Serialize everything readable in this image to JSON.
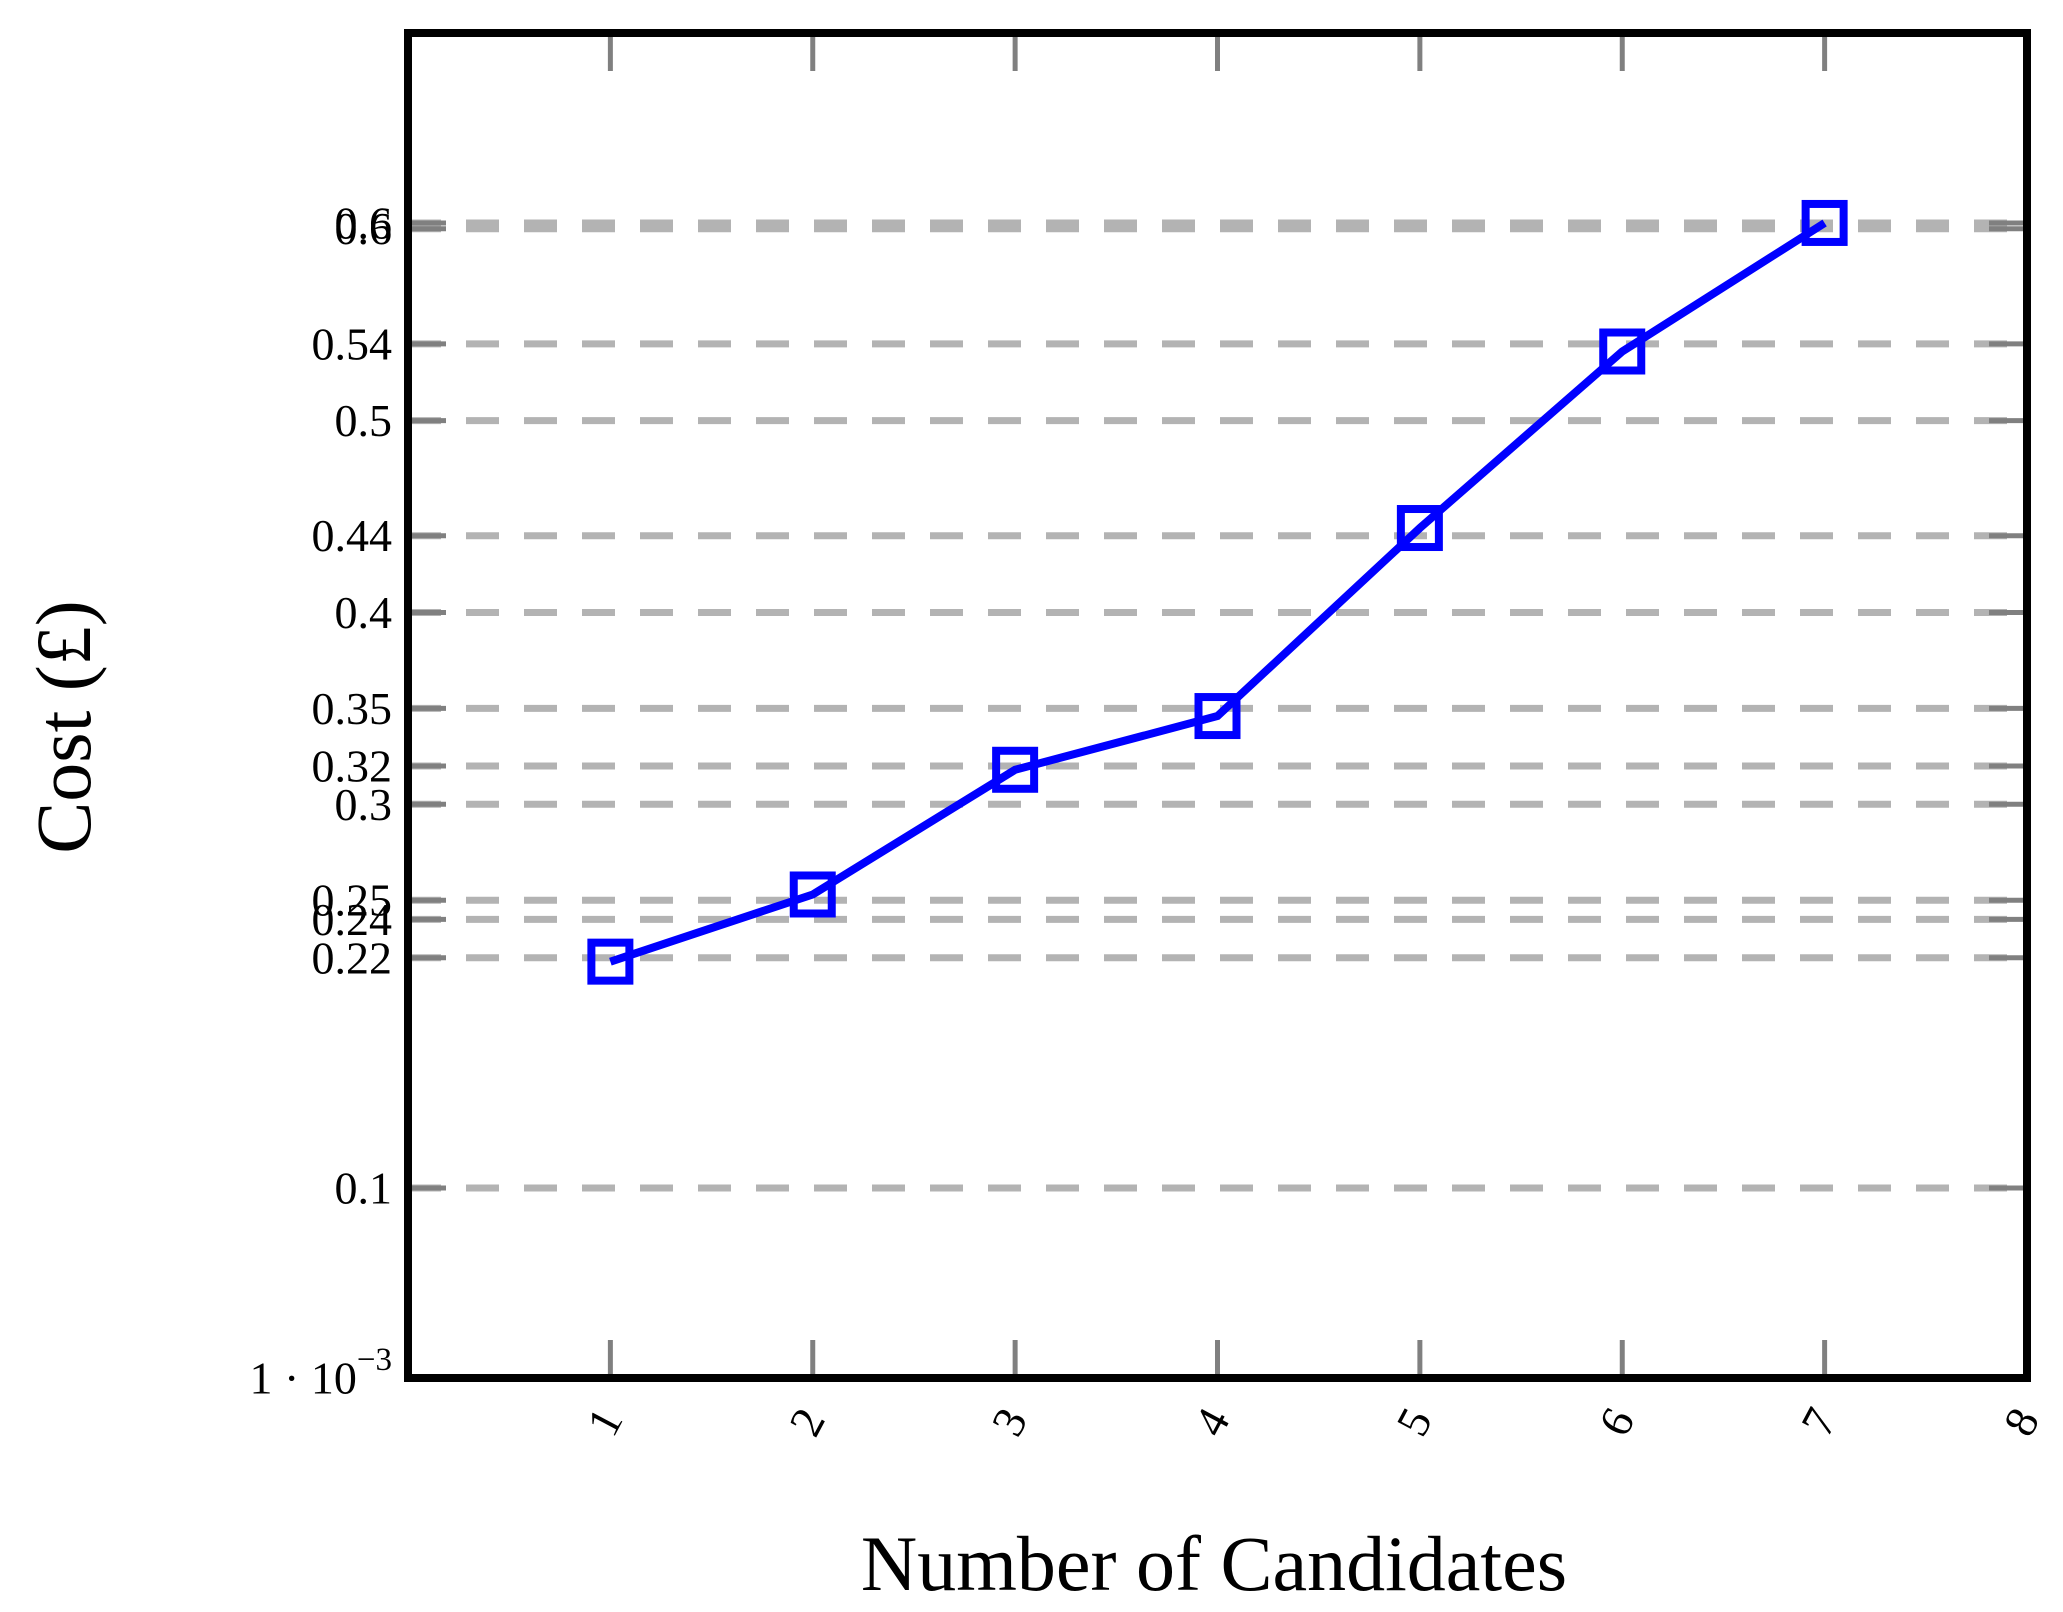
{
  "figure": {
    "background": "#ffffff",
    "description": "Line plot of cost in pounds versus number of candidates, open square markers, dashed horizontal gridlines"
  },
  "chart_data": {
    "type": "line",
    "title": "",
    "xlabel": "Number of Candidates",
    "ylabel": "Cost (£)",
    "x": [
      1,
      2,
      3,
      4,
      5,
      6,
      7
    ],
    "series": [
      {
        "name": "cost",
        "marker": "open-square",
        "color": "#0000ff",
        "values": [
          0.218,
          0.253,
          0.318,
          0.346,
          0.444,
          0.536,
          0.603
        ]
      }
    ],
    "xlim": [
      0,
      8
    ],
    "ylim": [
      0.001,
      0.702
    ],
    "x_ticks": [
      {
        "value": 1,
        "label": "1"
      },
      {
        "value": 2,
        "label": "2"
      },
      {
        "value": 3,
        "label": "3"
      },
      {
        "value": 4,
        "label": "4"
      },
      {
        "value": 5,
        "label": "5"
      },
      {
        "value": 6,
        "label": "6"
      },
      {
        "value": 7,
        "label": "7"
      },
      {
        "value": 8,
        "label": "8"
      }
    ],
    "y_ticks": [
      {
        "value": 0.001,
        "label": "1 · 10",
        "exponent": "−3",
        "grid": false,
        "tick": false
      },
      {
        "value": 0.1,
        "label": "0.1"
      },
      {
        "value": 0.22,
        "label": "0.22"
      },
      {
        "value": 0.24,
        "label": "0.24"
      },
      {
        "value": 0.25,
        "label": "0.25"
      },
      {
        "value": 0.3,
        "label": "0.3"
      },
      {
        "value": 0.32,
        "label": "0.32"
      },
      {
        "value": 0.35,
        "label": "0.35"
      },
      {
        "value": 0.4,
        "label": "0.4"
      },
      {
        "value": 0.44,
        "label": "0.44"
      },
      {
        "value": 0.5,
        "label": "0.5"
      },
      {
        "value": 0.54,
        "label": "0.54"
      },
      {
        "value": 0.6,
        "label": "0.6"
      },
      {
        "value": 0.603,
        "label": "0.6"
      }
    ],
    "grid": {
      "horizontal": true,
      "vertical": false,
      "style": "dashed",
      "color": "#b3b3b3"
    },
    "legend": {
      "visible": false
    },
    "colors": {
      "line": "#0000ff",
      "grid": "#b3b3b3",
      "tick": "#808080",
      "axis": "#000000",
      "text": "#000000",
      "background": "#ffffff"
    }
  }
}
